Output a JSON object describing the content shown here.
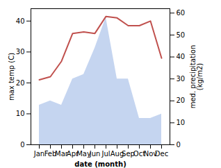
{
  "chart_data": {
    "type": "line",
    "xlabel": "date (month)",
    "ylabel": "max temp (C)",
    "y2label": "med. precipitation\n(kg/m2)",
    "categories": [
      "Jan",
      "Feb",
      "Mar",
      "Apr",
      "May",
      "Jun",
      "Jul",
      "Aug",
      "Sep",
      "Oct",
      "Nov",
      "Dec"
    ],
    "series": [
      {
        "type": "area",
        "axis": "y2",
        "color": "#c5d5f0",
        "values": [
          18,
          20,
          18,
          30,
          32,
          44,
          58,
          30,
          30,
          12,
          12,
          14
        ]
      },
      {
        "type": "line",
        "color": "#c0504d",
        "values": [
          21,
          22,
          27,
          36,
          36.5,
          36,
          41.5,
          41,
          38.5,
          38.5,
          40,
          28
        ]
      }
    ],
    "ylim": [
      0,
      44
    ],
    "yticks": [
      0,
      10,
      20,
      30,
      40
    ],
    "y2lim": [
      0,
      62
    ],
    "y2ticks": [
      0,
      10,
      20,
      30,
      40,
      50,
      60
    ]
  }
}
